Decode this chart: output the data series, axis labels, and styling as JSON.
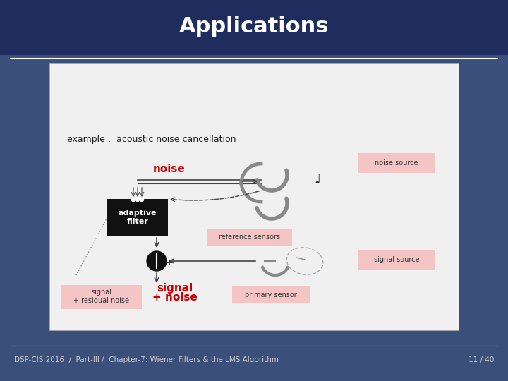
{
  "title": "Applications",
  "title_color": "#ffffff",
  "title_bg_color": "#1e2d5e",
  "slide_bg_color": "#3a4f7a",
  "content_bg_color": "#f0f0f0",
  "footer_text": "DSP-CIS 2016  /  Part-III /  Chapter-7: Wiener Filters & the LMS Algorithm",
  "footer_page": "11 / 40",
  "footer_color": "#cccccc",
  "example_text": "example :  acoustic noise cancellation",
  "noise_label": "noise",
  "noise_label_color": "#cc0000",
  "signal_noise_line1": "signal",
  "signal_noise_line2": "+ noise",
  "signal_noise_color": "#cc0000",
  "adaptive_filter_text": "adaptive\nfilter",
  "adaptive_filter_bg": "#111111",
  "adaptive_filter_color": "#ffffff",
  "noise_source_text": "noise source",
  "signal_source_text": "signal source",
  "reference_sensors_text": "reference sensors",
  "primary_sensor_text": "primary sensor",
  "signal_residual_line1": "signal",
  "signal_residual_line2": "+ residual noise",
  "pink_box_color": "#f5c5c5",
  "separator_color": "#ffffff",
  "line_color": "#444444",
  "gray_color": "#888888"
}
